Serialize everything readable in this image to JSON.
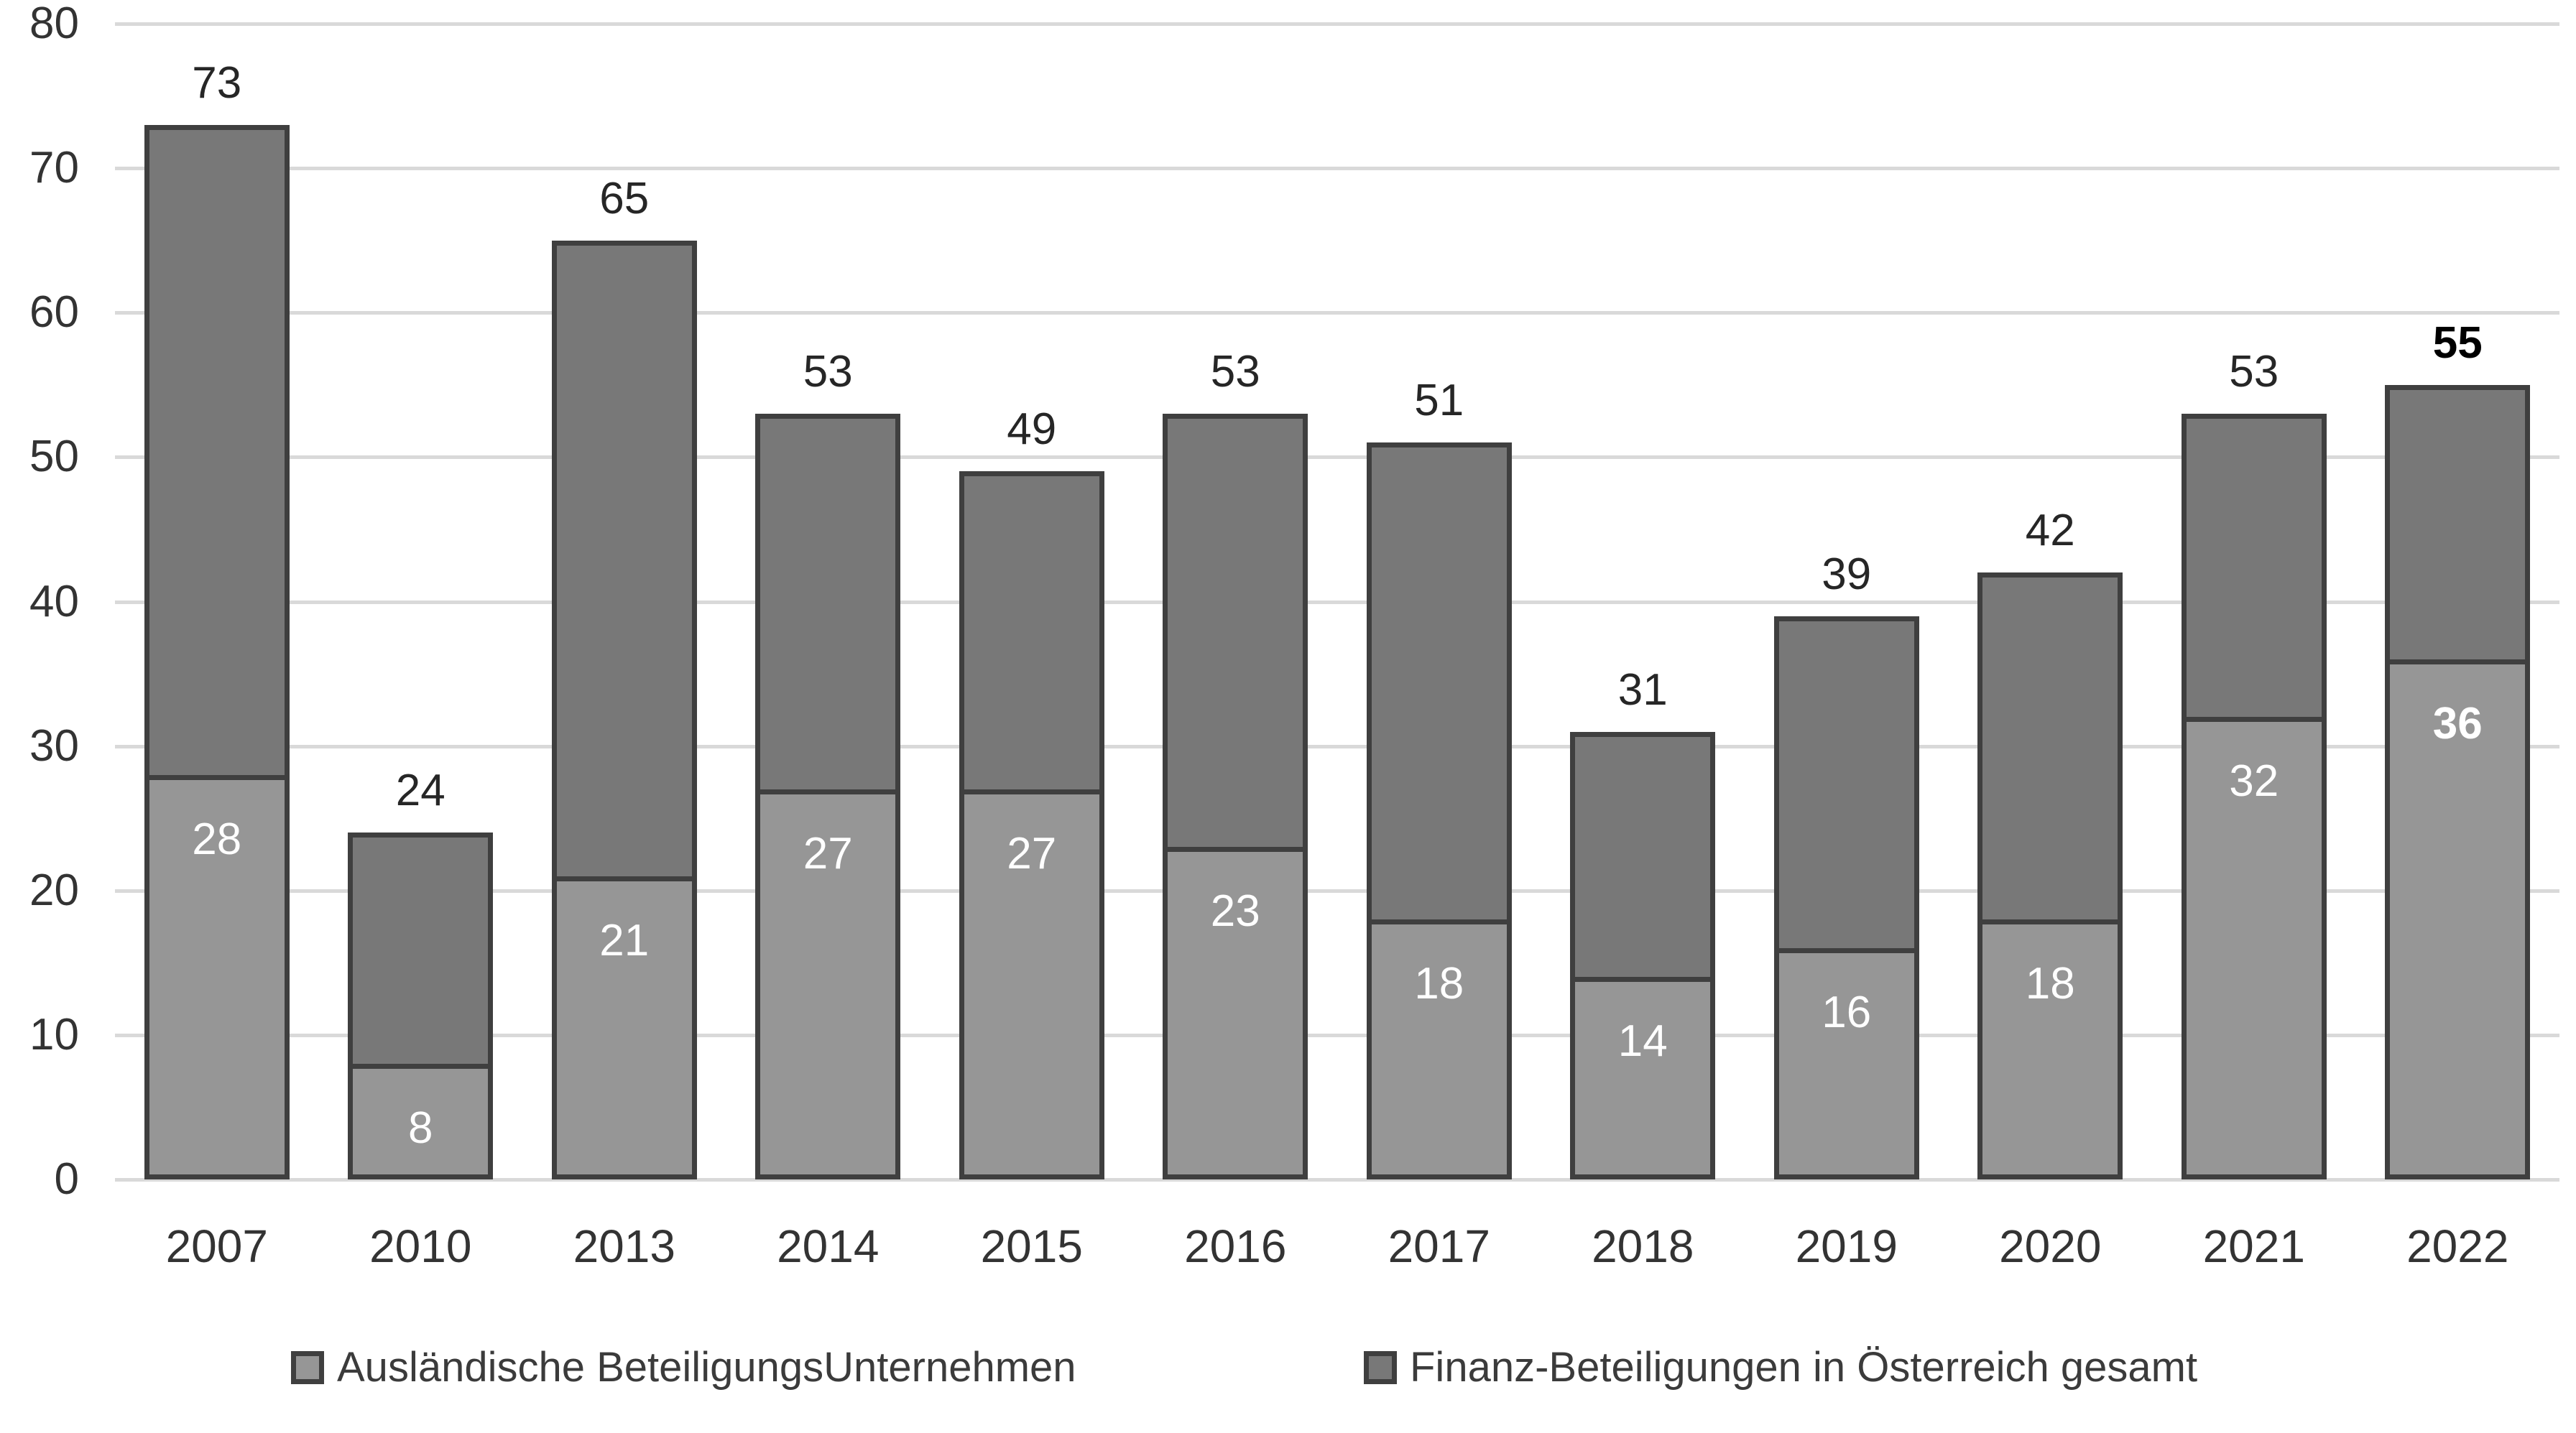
{
  "chart_data": {
    "type": "bar",
    "stacked": true,
    "title": "",
    "categories": [
      "2007",
      "2010",
      "2013",
      "2014",
      "2015",
      "2016",
      "2017",
      "2018",
      "2019",
      "2020",
      "2021",
      "2022"
    ],
    "series": [
      {
        "name": "Ausländische BeteiligungsUnternehmen",
        "color": "#969696",
        "values": [
          28,
          8,
          21,
          27,
          27,
          23,
          18,
          14,
          16,
          18,
          32,
          36
        ],
        "data_labels": "inside-white"
      },
      {
        "name": "Finanz-Beteiligungen in Österreich gesamt",
        "color": "#787878",
        "values": [
          45,
          16,
          44,
          26,
          22,
          30,
          33,
          17,
          23,
          24,
          21,
          19
        ],
        "data_labels": "none"
      }
    ],
    "totals": [
      73,
      24,
      65,
      53,
      49,
      53,
      51,
      31,
      39,
      42,
      53,
      55
    ],
    "emphasized_category_index": 11,
    "ylim": [
      0,
      80
    ],
    "yticks": [
      0,
      10,
      20,
      30,
      40,
      50,
      60,
      70,
      80
    ],
    "grid": true,
    "legend_position": "bottom",
    "colors": {
      "bar_border": "#3f3f3f",
      "gridline": "#d9d9d9",
      "tick_label": "#333333",
      "total_label": "#262626",
      "emphasis_label": "#000000",
      "inner_label": "#ffffff",
      "background": "#ffffff"
    }
  }
}
